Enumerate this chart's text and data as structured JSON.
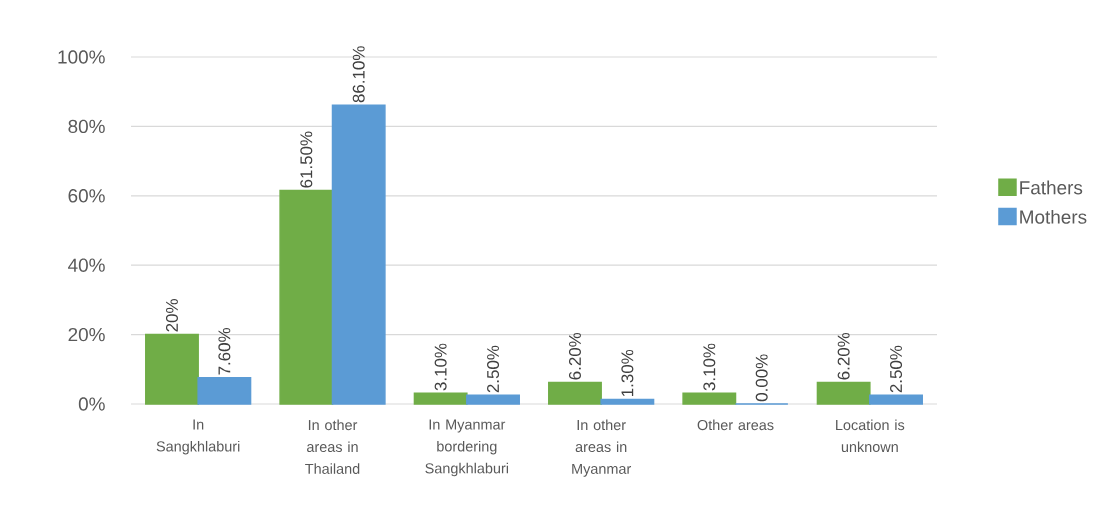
{
  "chart_data": {
    "type": "bar",
    "categories": [
      "In Sangkhlaburi",
      "In other areas in Thailand",
      "In Myanmar bordering Sangkhlaburi",
      "In other areas in Myanmar",
      "Other areas",
      "Location is unknown"
    ],
    "series": [
      {
        "name": "Fathers",
        "color": "#70ad47",
        "values": [
          20,
          61.5,
          3.1,
          6.2,
          3.1,
          6.2
        ],
        "value_labels": [
          "20%",
          "61.50%",
          "3.10%",
          "6.20%",
          "3.10%",
          "6.20%"
        ]
      },
      {
        "name": "Mothers",
        "color": "#5b9bd5",
        "values": [
          7.6,
          86.1,
          2.5,
          1.3,
          0,
          2.5
        ],
        "value_labels": [
          "7.60%",
          "86.10%",
          "2.50%",
          "1.30%",
          "0.00%",
          "2.50%"
        ]
      }
    ],
    "ylim": [
      0,
      100
    ],
    "yticks": [
      {
        "value": 0,
        "label": "0%"
      },
      {
        "value": 20,
        "label": "20%"
      },
      {
        "value": 40,
        "label": "40%"
      },
      {
        "value": 60,
        "label": "60%"
      },
      {
        "value": 80,
        "label": "80%"
      },
      {
        "value": 100,
        "label": "100%"
      }
    ],
    "grid": "y",
    "legend": "right"
  }
}
